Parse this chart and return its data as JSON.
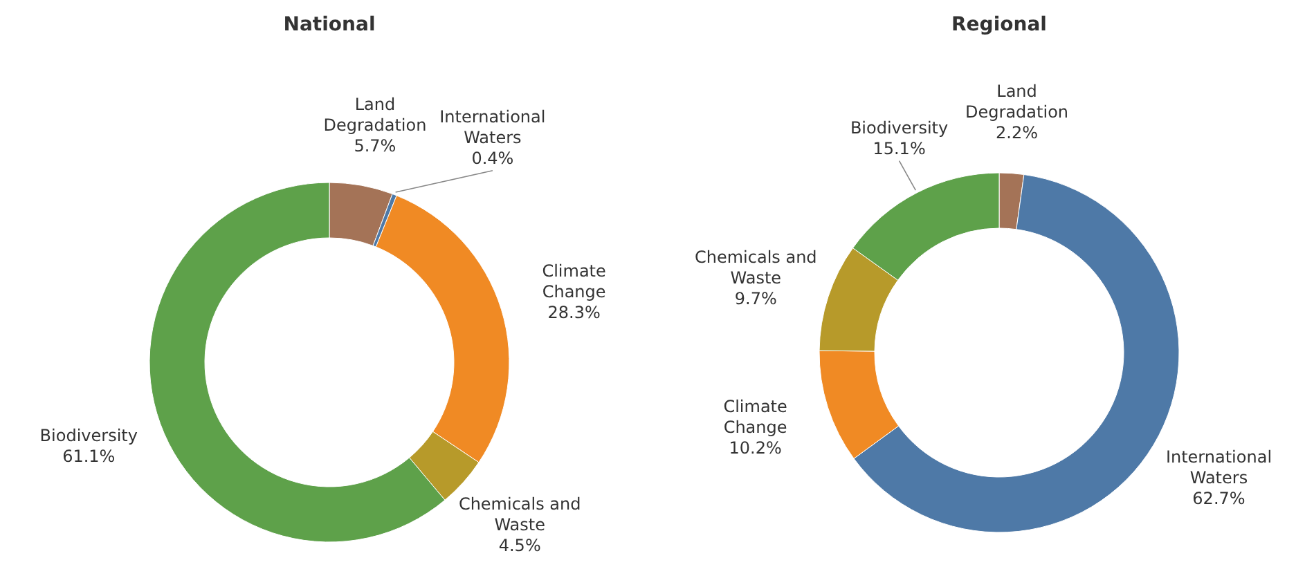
{
  "chart_data": [
    {
      "type": "donut",
      "title": "National",
      "categories": [
        "Land Degradation",
        "International Waters",
        "Climate Change",
        "Chemicals and Waste",
        "Biodiversity"
      ],
      "values": [
        5.7,
        0.4,
        28.3,
        4.5,
        61.1
      ],
      "colors": [
        "#a47357",
        "#4e79a7",
        "#f08a24",
        "#b79a2a",
        "#5ea14a"
      ],
      "value_labels": [
        "5.7%",
        "0.4%",
        "28.3%",
        "4.5%",
        "61.1%"
      ],
      "legend": false
    },
    {
      "type": "donut",
      "title": "Regional",
      "categories": [
        "Land Degradation",
        "International Waters",
        "Climate Change",
        "Chemicals and Waste",
        "Biodiversity"
      ],
      "values": [
        2.2,
        62.7,
        10.2,
        9.7,
        15.1
      ],
      "colors": [
        "#a47357",
        "#4e79a7",
        "#f08a24",
        "#b79a2a",
        "#5ea14a"
      ],
      "value_labels": [
        "2.2%",
        "62.7%",
        "10.2%",
        "9.7%",
        "15.1%"
      ],
      "legend": false
    }
  ]
}
